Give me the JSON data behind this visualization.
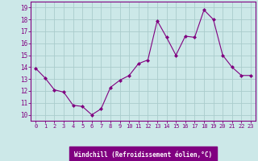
{
  "x": [
    0,
    1,
    2,
    3,
    4,
    5,
    6,
    7,
    8,
    9,
    10,
    11,
    12,
    13,
    14,
    15,
    16,
    17,
    18,
    19,
    20,
    21,
    22,
    23
  ],
  "y": [
    13.9,
    13.1,
    12.1,
    11.9,
    10.8,
    10.7,
    10.0,
    10.5,
    12.3,
    12.9,
    13.3,
    14.3,
    14.6,
    17.9,
    16.5,
    15.0,
    16.6,
    16.5,
    18.8,
    18.0,
    15.0,
    14.0,
    13.3,
    13.3
  ],
  "line_color": "#800080",
  "marker": "D",
  "marker_size": 2.0,
  "bg_color": "#cce8e8",
  "grid_color": "#aacccc",
  "xlabel": "Windchill (Refroidissement éolien,°C)",
  "xlabel_color": "#ffffff",
  "xlabel_bg": "#800080",
  "yticks": [
    10,
    11,
    12,
    13,
    14,
    15,
    16,
    17,
    18,
    19
  ],
  "xticks": [
    0,
    1,
    2,
    3,
    4,
    5,
    6,
    7,
    8,
    9,
    10,
    11,
    12,
    13,
    14,
    15,
    16,
    17,
    18,
    19,
    20,
    21,
    22,
    23
  ],
  "ylim": [
    9.5,
    19.5
  ],
  "xlim": [
    -0.5,
    23.5
  ],
  "tick_color": "#800080",
  "axis_color": "#800080",
  "spine_color": "#800080"
}
